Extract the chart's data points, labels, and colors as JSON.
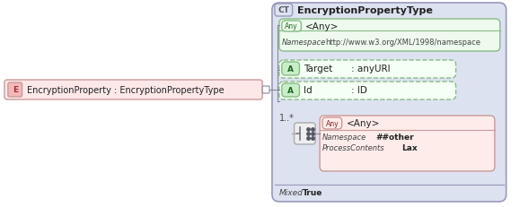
{
  "ct_title": "EncryptionPropertyType",
  "elem_text": "EncryptionProperty : EncryptionPropertyType",
  "any1_namespace": "http://www.w3.org/XML/1998/namespace",
  "any2_namespace": "##other",
  "any2_process": "Lax",
  "mixed_label": "Mixed",
  "mixed_value": "True",
  "sequence_label": "1..*",
  "main_bg": "#dde2f0",
  "main_border": "#9999bb",
  "any1_bg": "#edfaed",
  "any1_border": "#88bb88",
  "attr_bg": "#f5fff5",
  "attr_border": "#88bb88",
  "attr_badge_bg": "#c8eec8",
  "any2_bg": "#fdecea",
  "any2_border": "#cc9999",
  "any2_badge_bg": "#f5c8c8",
  "elem_bg": "#fde8e8",
  "elem_border": "#cc9999",
  "elem_badge_bg": "#f5b8b8",
  "seq_box_bg": "#eeeeee",
  "seq_box_border": "#aaaaaa",
  "connector_color": "#888899",
  "text_dark": "#222222",
  "text_gray": "#555566",
  "text_italic_color": "#444444"
}
